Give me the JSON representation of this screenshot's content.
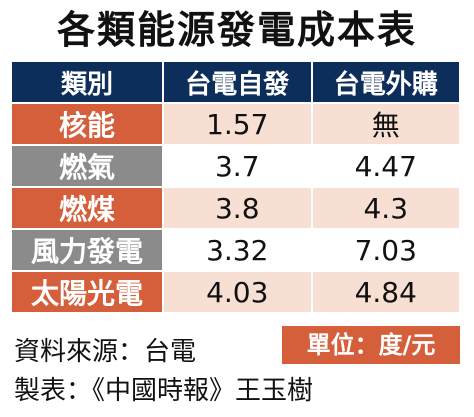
{
  "chart_data": {
    "type": "table",
    "title": "各類能源發電成本表",
    "columns": [
      "類別",
      "台電自發",
      "台電外購"
    ],
    "rows": [
      {
        "category": "核能",
        "self_generated": "1.57",
        "purchased": "無"
      },
      {
        "category": "燃氣",
        "self_generated": "3.7",
        "purchased": "4.47"
      },
      {
        "category": "燃煤",
        "self_generated": "3.8",
        "purchased": "4.3"
      },
      {
        "category": "風力發電",
        "self_generated": "3.32",
        "purchased": "7.03"
      },
      {
        "category": "太陽光電",
        "self_generated": "4.03",
        "purchased": "4.84"
      }
    ],
    "unit": "單位：度/元"
  },
  "footer": {
    "source": "資料來源：台電",
    "credit": "製表：《中國時報》王玉樹"
  },
  "colors": {
    "header_bg": "#0d2d5a",
    "accent_orange": "#d45f3a",
    "accent_gray": "#8b8b8b",
    "row_tint": "#f8dfd3"
  }
}
